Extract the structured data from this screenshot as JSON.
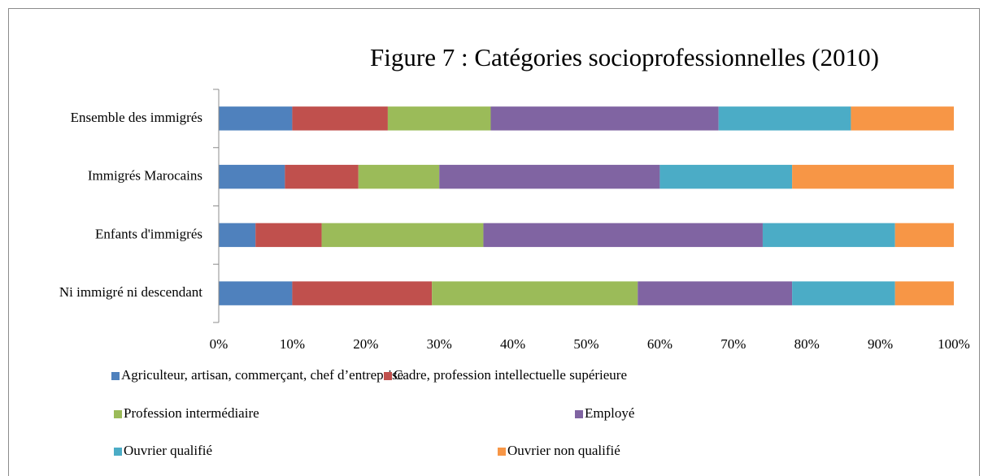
{
  "chart_data": {
    "type": "bar",
    "orientation": "horizontal",
    "stacked": true,
    "title": "Figure 7 : Catégories socioprofessionnelles (2010)",
    "categories": [
      "Ensemble des immigrés",
      "Immigrés Marocains",
      "Enfants d'immigrés",
      "Ni immigré ni descendant"
    ],
    "series": [
      {
        "name": "Agriculteur, artisan, commerçant, chef d’entreprise",
        "color": "#4f81bd",
        "values": [
          10,
          9,
          5,
          10
        ]
      },
      {
        "name": "Cadre, profession intellectuelle supérieure",
        "color": "#c0504d",
        "values": [
          13,
          10,
          9,
          19
        ]
      },
      {
        "name": "Profession intermédiaire",
        "color": "#9bbb59",
        "values": [
          14,
          11,
          22,
          28
        ]
      },
      {
        "name": "Employé",
        "color": "#8064a2",
        "values": [
          31,
          30,
          38,
          21
        ]
      },
      {
        "name": "Ouvrier qualifié",
        "color": "#4bacc6",
        "values": [
          18,
          18,
          18,
          14
        ]
      },
      {
        "name": "Ouvrier non qualifié",
        "color": "#f79646",
        "values": [
          14,
          22,
          8,
          8
        ]
      }
    ],
    "xlim": [
      0,
      100
    ],
    "xticks": [
      {
        "value": 0,
        "label": "0%"
      },
      {
        "value": 10,
        "label": "10%"
      },
      {
        "value": 20,
        "label": "20%"
      },
      {
        "value": 30,
        "label": "30%"
      },
      {
        "value": 40,
        "label": "40%"
      },
      {
        "value": 50,
        "label": "50%"
      },
      {
        "value": 60,
        "label": "60%"
      },
      {
        "value": 70,
        "label": "70%"
      },
      {
        "value": 80,
        "label": "80%"
      },
      {
        "value": 90,
        "label": "90%"
      },
      {
        "value": 100,
        "label": "100%"
      }
    ],
    "legend": "bottom",
    "grid": false
  }
}
